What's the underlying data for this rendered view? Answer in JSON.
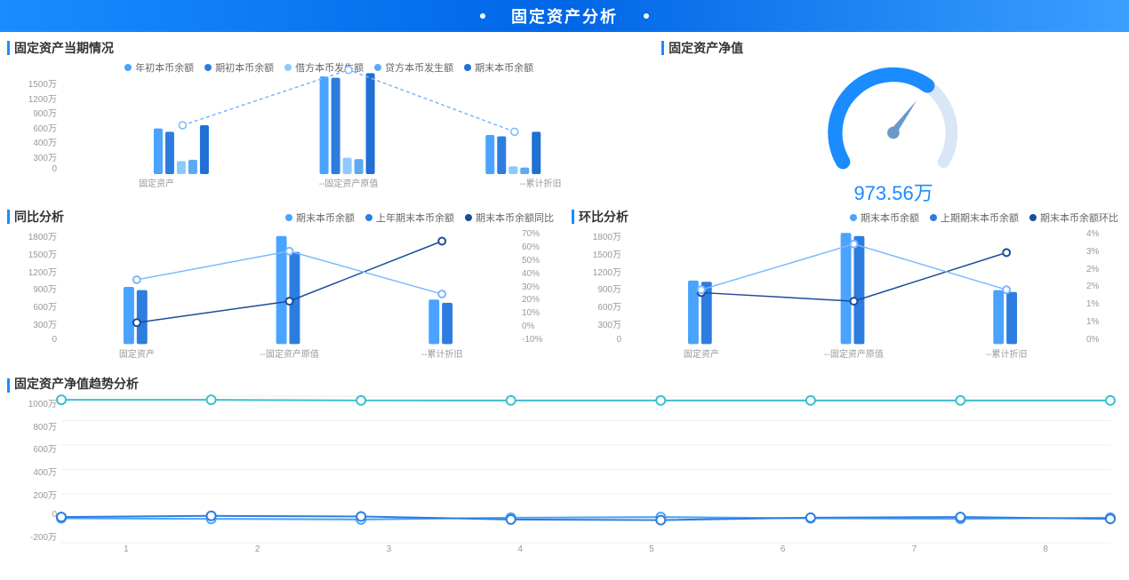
{
  "header": {
    "title": "固定资产分析"
  },
  "colors": {
    "primary": "#2e8bff",
    "primary_dark": "#1a66cc",
    "teal": "#3ac0cf",
    "navy": "#2d5db8",
    "light": "#7ab8ff",
    "grid": "#eeeeee",
    "text": "#666666"
  },
  "current": {
    "title": "固定资产当期情况",
    "legend": [
      {
        "label": "年初本币余额",
        "color": "#49a3ff"
      },
      {
        "label": "期初本币余额",
        "color": "#2d7de0"
      },
      {
        "label": "借方本币发生额",
        "color": "#8cc9ff"
      },
      {
        "label": "贷方本币发生额",
        "color": "#5da9f2"
      },
      {
        "label": "期末本币余额",
        "color": "#1f6fd4"
      }
    ],
    "y_ticks": [
      "1500万",
      "1200万",
      "900万",
      "600万",
      "400万",
      "300万",
      "0"
    ],
    "y_max": 1500,
    "categories": [
      "固定资产",
      "--固定资产原值",
      "--累计折旧"
    ],
    "bars": [
      {
        "values": [
          700,
          1500,
          600
        ]
      },
      {
        "values": [
          650,
          1480,
          580
        ]
      },
      {
        "values": [
          200,
          250,
          120
        ]
      },
      {
        "values": [
          220,
          230,
          100
        ]
      },
      {
        "values": [
          750,
          1550,
          650
        ]
      }
    ],
    "line": {
      "values": [
        750,
        1600,
        650
      ],
      "color": "#7ab8ff"
    }
  },
  "net_value": {
    "title": "固定资产净值",
    "value_label": "973.56万",
    "value": 973.56,
    "max": 1500,
    "ring_color": "#1a8cff",
    "bg_ring": "#d8e6f5",
    "pointer_color": "#6a98c9"
  },
  "yoy": {
    "title": "同比分析",
    "legend": [
      {
        "label": "期末本币余额",
        "color": "#49a3ff"
      },
      {
        "label": "上年期末本币余额",
        "color": "#2d7de0"
      },
      {
        "label": "期末本币余额同比",
        "color": "#1a4d99"
      }
    ],
    "y_ticks": [
      "1800万",
      "1500万",
      "1200万",
      "900万",
      "600万",
      "300万",
      "0"
    ],
    "y_max": 1800,
    "y2_ticks": [
      "70%",
      "60%",
      "50%",
      "40%",
      "30%",
      "20%",
      "10%",
      "0%",
      "-10%"
    ],
    "y2_min": -10,
    "y2_max": 70,
    "categories": [
      "固定资产",
      "--固定资产原值",
      "--累计折旧"
    ],
    "bars": [
      {
        "values": [
          900,
          1700,
          700
        ],
        "color": "#49a3ff"
      },
      {
        "values": [
          850,
          1450,
          650
        ],
        "color": "#2d7de0"
      }
    ],
    "line": {
      "values": [
        5,
        20,
        62
      ],
      "color": "#1a4d99"
    },
    "line2": {
      "values": [
        35,
        55,
        25
      ],
      "color": "#7ab8ff"
    }
  },
  "mom": {
    "title": "环比分析",
    "legend": [
      {
        "label": "期末本币余额",
        "color": "#49a3ff"
      },
      {
        "label": "上期期末本币余额",
        "color": "#2d7de0"
      },
      {
        "label": "期末本币余额环比",
        "color": "#1a4d99"
      }
    ],
    "y_ticks": [
      "1800万",
      "1500万",
      "1200万",
      "900万",
      "600万",
      "300万",
      "0"
    ],
    "y_max": 1800,
    "y2_ticks": [
      "4%",
      "3%",
      "2%",
      "2%",
      "1%",
      "1%",
      "0%"
    ],
    "y2_min": 0,
    "y2_max": 4,
    "categories": [
      "固定资产",
      "--固定资产原值",
      "--累计折旧"
    ],
    "bars": [
      {
        "values": [
          1000,
          1750,
          850
        ],
        "color": "#49a3ff"
      },
      {
        "values": [
          980,
          1700,
          820
        ],
        "color": "#2d7de0"
      }
    ],
    "line": {
      "values": [
        1.8,
        1.5,
        3.2
      ],
      "color": "#1a4d99"
    },
    "line2": {
      "values": [
        1.9,
        3.5,
        1.9
      ],
      "color": "#7ab8ff"
    }
  },
  "trend": {
    "title": "固定资产净值趋势分析",
    "y_ticks": [
      "1000万",
      "800万",
      "600万",
      "400万",
      "200万",
      "0",
      "-200万"
    ],
    "y_min": -200,
    "y_max": 1000,
    "x_labels": [
      "1",
      "2",
      "3",
      "4",
      "5",
      "6",
      "7",
      "8"
    ],
    "series": [
      {
        "values": [
          970,
          970,
          965,
          965,
          965,
          965,
          965,
          965
        ],
        "color": "#3ac0cf"
      },
      {
        "values": [
          0,
          -5,
          -10,
          5,
          10,
          0,
          -5,
          5
        ],
        "color": "#49a3ff"
      },
      {
        "values": [
          10,
          20,
          15,
          -10,
          -15,
          5,
          10,
          -5
        ],
        "color": "#2d7de0"
      }
    ]
  }
}
